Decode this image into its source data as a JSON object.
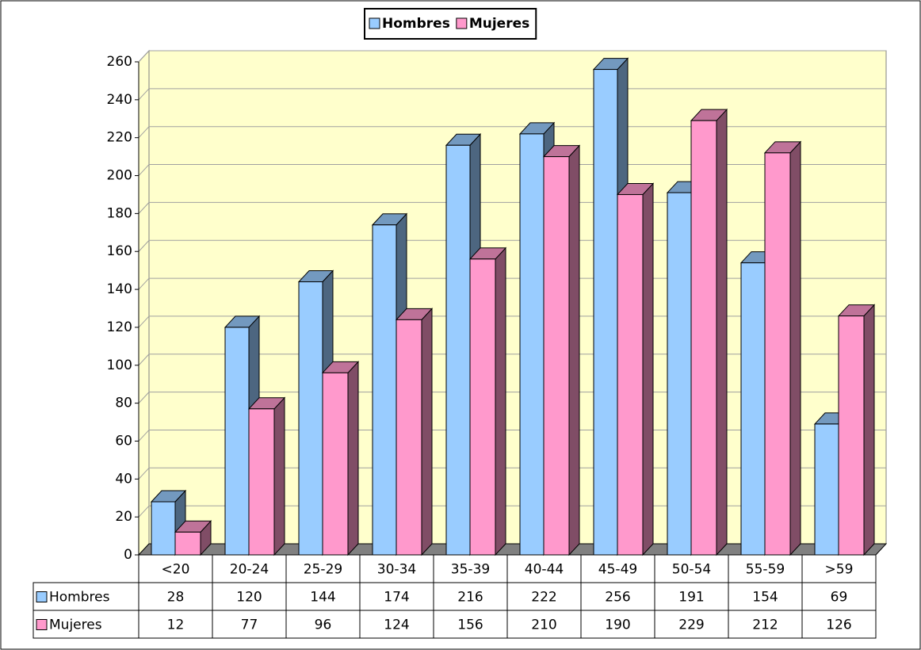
{
  "chart_data": {
    "type": "bar3d",
    "categories": [
      "<20",
      "20-24",
      "25-29",
      "30-34",
      "35-39",
      "40-44",
      "45-49",
      "50-54",
      "55-59",
      ">59"
    ],
    "series": [
      {
        "name": "Hombres",
        "color": "#99ccff",
        "values": [
          28,
          120,
          144,
          174,
          216,
          222,
          256,
          191,
          154,
          69
        ]
      },
      {
        "name": "Mujeres",
        "color": "#ff99cc",
        "values": [
          12,
          77,
          96,
          124,
          156,
          210,
          190,
          229,
          212,
          126
        ]
      }
    ],
    "ylim": [
      0,
      260
    ],
    "yticks": [
      0,
      20,
      40,
      60,
      80,
      100,
      120,
      140,
      160,
      180,
      200,
      220,
      240,
      260
    ],
    "grid": true,
    "legend": "top",
    "data_table": true
  }
}
